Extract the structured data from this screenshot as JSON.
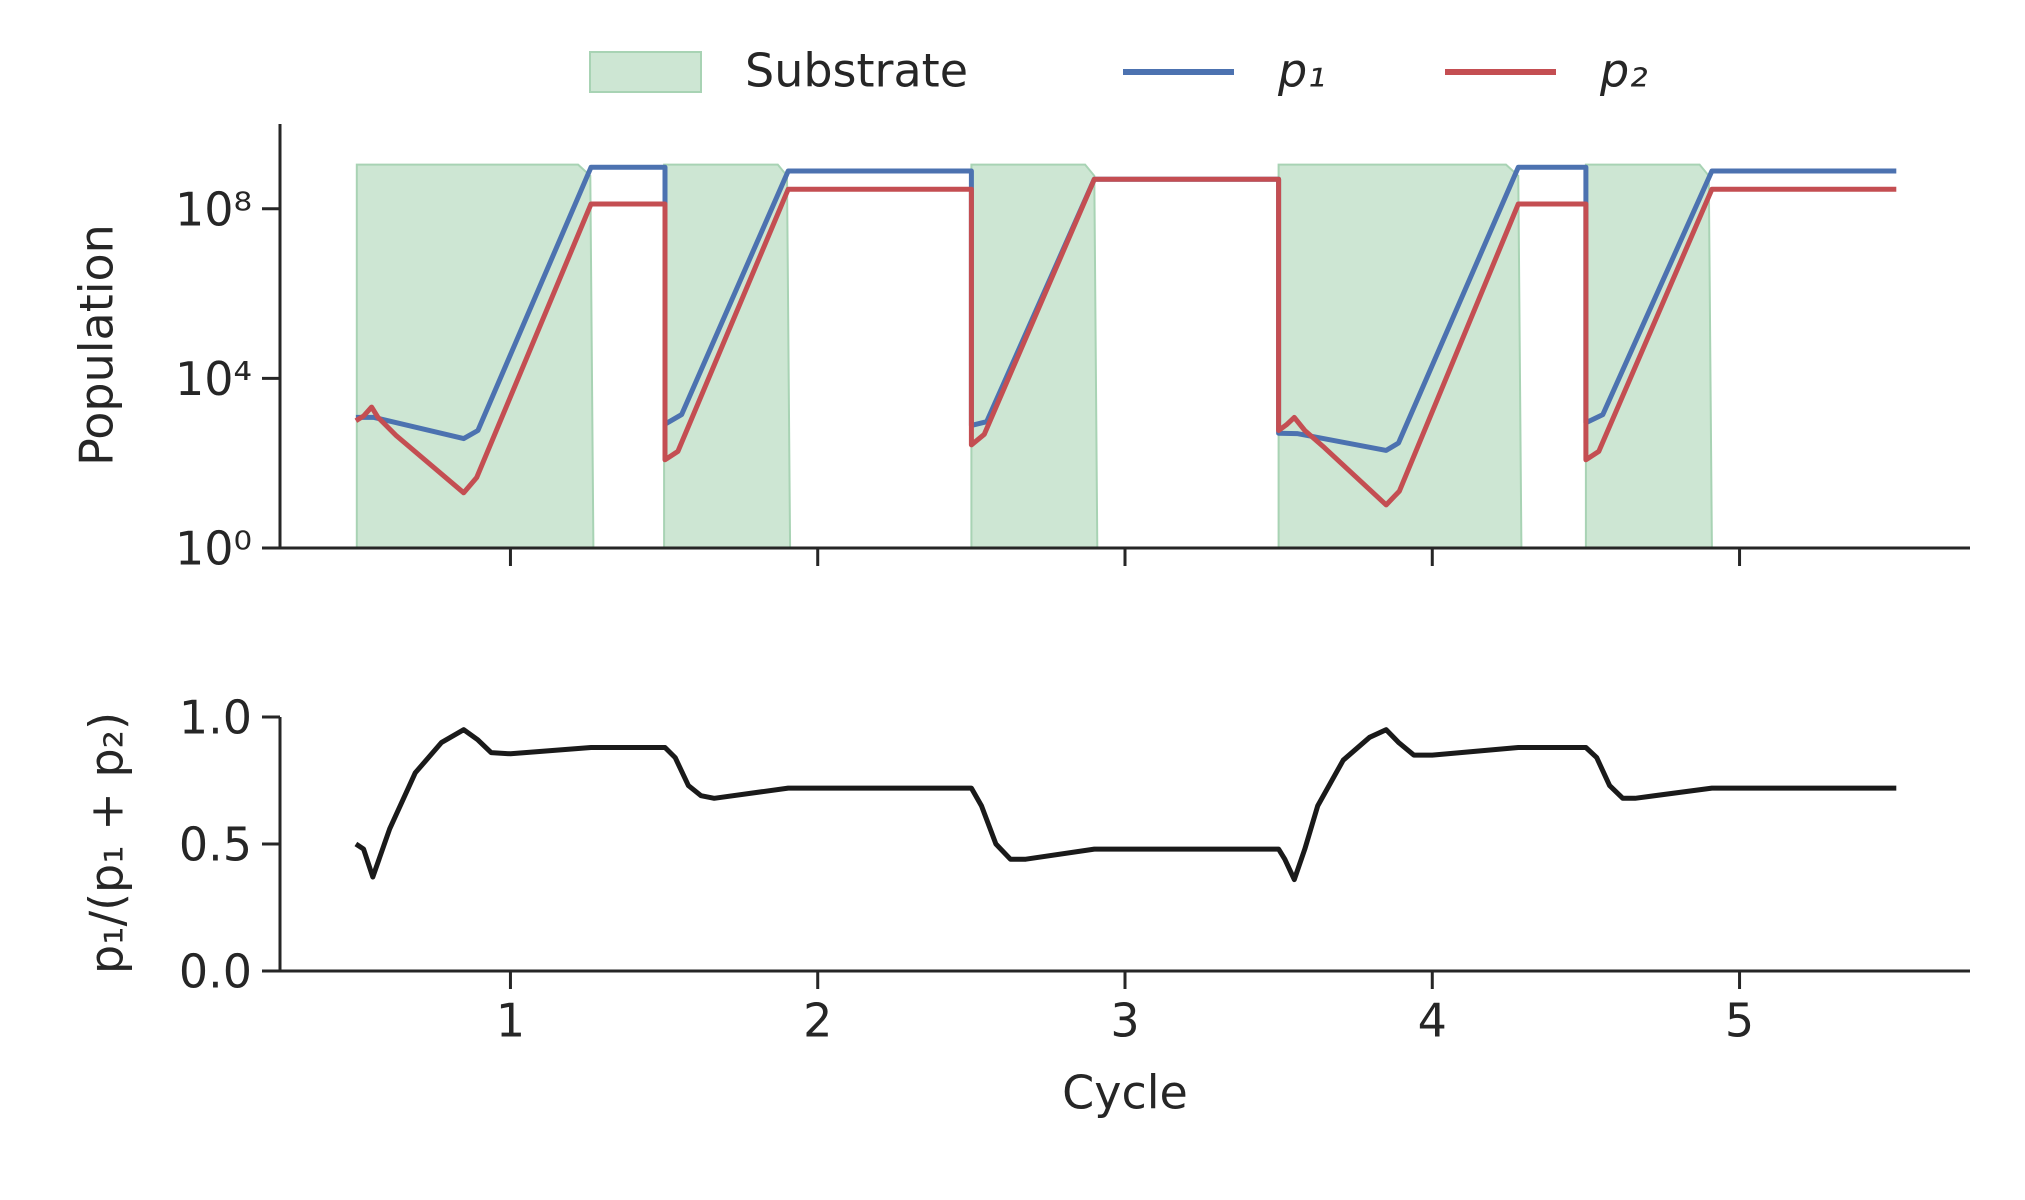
{
  "chart_data": [
    {
      "type": "line",
      "ylabel": "Population",
      "yscale": "log",
      "legend": "top",
      "xlim": [
        0.25,
        5.75
      ],
      "ylim": [
        1,
        10000000000
      ],
      "yticks": [
        {
          "value": 1,
          "label": "10⁰"
        },
        {
          "value": 10000,
          "label": "10⁴"
        },
        {
          "value": 100000000,
          "label": "10⁸"
        }
      ],
      "series": [
        {
          "name": "Substrate",
          "type": "area",
          "color": "#cde6d3",
          "x": [
            0.5,
            0.5,
            1.22,
            1.26,
            1.27,
            1.5,
            1.5,
            1.87,
            1.9,
            1.91,
            2.5,
            2.5,
            2.87,
            2.9,
            2.91,
            3.5,
            3.5,
            4.24,
            4.28,
            4.29,
            4.5,
            4.5,
            4.87,
            4.9,
            4.91
          ],
          "values": [
            0,
            1100000000,
            1100000000,
            600000000,
            0,
            0,
            1100000000,
            1100000000,
            600000000,
            0,
            0,
            1100000000,
            1100000000,
            600000000,
            0,
            0,
            1100000000,
            1100000000,
            600000000,
            0,
            0,
            1100000000,
            1100000000,
            600000000,
            0
          ]
        },
        {
          "name": "p₁",
          "type": "line",
          "color": "#4c72b0",
          "x": [
            0.497,
            0.556,
            0.848,
            0.894,
            1.262,
            1.503,
            1.503,
            1.557,
            1.904,
            2.5,
            2.5,
            2.55,
            2.9,
            3.5,
            3.5,
            3.56,
            3.85,
            3.89,
            4.28,
            4.5,
            4.5,
            4.555,
            4.91,
            5.51
          ],
          "values": [
            1200,
            1200,
            380,
            590,
            950000000,
            950000000,
            830,
            1400,
            780000000,
            780000000,
            780,
            950,
            500000000,
            500000000,
            510,
            500,
            200,
            300,
            950000000,
            950000000,
            900,
            1400,
            780000000,
            780000000
          ]
        },
        {
          "name": "p₂",
          "type": "line",
          "color": "#c44e52",
          "x": [
            0.497,
            0.522,
            0.548,
            0.569,
            0.628,
            0.848,
            0.89,
            1.262,
            1.503,
            1.503,
            1.545,
            1.904,
            2.5,
            2.5,
            2.542,
            2.9,
            3.5,
            3.5,
            3.525,
            3.551,
            3.585,
            3.65,
            3.85,
            3.893,
            4.28,
            4.5,
            4.5,
            4.542,
            4.91,
            5.51
          ],
          "values": [
            1000,
            1300,
            2100,
            1200,
            450,
            20,
            46,
            130000000,
            130000000,
            120,
            190,
            290000000,
            290000000,
            270,
            480,
            500000000,
            500000000,
            590,
            800,
            1200,
            590,
            230,
            10.4,
            22,
            130000000,
            130000000,
            120,
            190,
            290000000,
            290000000
          ]
        }
      ]
    },
    {
      "type": "line",
      "xlabel": "Cycle",
      "ylabel": "p₁/(p₁ + p₂)",
      "xlim": [
        0.25,
        5.75
      ],
      "ylim": [
        0,
        1
      ],
      "xticks": [
        1,
        2,
        3,
        4,
        5
      ],
      "yticks": [
        {
          "value": 0,
          "label": "0.0"
        },
        {
          "value": 0.5,
          "label": "0.5"
        },
        {
          "value": 1,
          "label": "1.0"
        }
      ],
      "series": [
        {
          "color": "#1a1a1a",
          "x": [
            0.497,
            0.522,
            0.552,
            0.607,
            0.69,
            0.776,
            0.848,
            0.894,
            0.937,
            1.0,
            1.262,
            1.503,
            1.536,
            1.579,
            1.62,
            1.663,
            1.904,
            2.5,
            2.533,
            2.58,
            2.627,
            2.677,
            2.9,
            3.5,
            3.52,
            3.551,
            3.585,
            3.627,
            3.71,
            3.796,
            3.85,
            3.89,
            3.94,
            4.0,
            4.28,
            4.5,
            4.535,
            4.577,
            4.62,
            4.66,
            4.91,
            5.51
          ],
          "values": [
            0.5,
            0.48,
            0.37,
            0.56,
            0.78,
            0.9,
            0.95,
            0.91,
            0.86,
            0.855,
            0.88,
            0.88,
            0.84,
            0.73,
            0.69,
            0.68,
            0.72,
            0.72,
            0.65,
            0.5,
            0.44,
            0.44,
            0.48,
            0.48,
            0.44,
            0.36,
            0.48,
            0.65,
            0.83,
            0.92,
            0.95,
            0.9,
            0.85,
            0.85,
            0.88,
            0.88,
            0.84,
            0.73,
            0.68,
            0.68,
            0.72,
            0.72
          ]
        }
      ]
    }
  ]
}
